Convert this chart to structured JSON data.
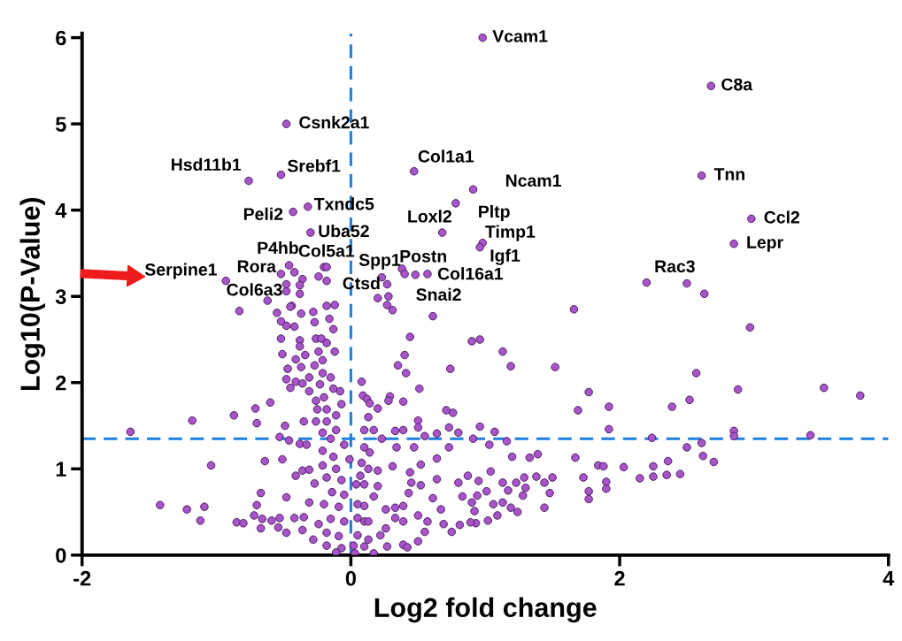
{
  "chart_data": {
    "type": "scatter",
    "xlabel": "Log2 fold change",
    "ylabel": "Log10(P-Value)",
    "xlim": [
      -2,
      4
    ],
    "ylim": [
      0,
      6.05
    ],
    "xticks": [
      -2,
      0,
      2,
      4
    ],
    "yticks": [
      0,
      1,
      2,
      3,
      4,
      5,
      6
    ],
    "grid": false,
    "marker": "circle",
    "series": [
      {
        "color": "#a855c8",
        "x": [
          0.98,
          2.68,
          -0.48,
          2.61,
          -0.76,
          -0.52,
          0.47,
          0.91,
          0.78,
          -0.32,
          -0.43,
          2.98,
          -0.3,
          0.68,
          0.98,
          0.96,
          2.85,
          -0.46,
          -0.2,
          -0.52,
          -0.93,
          -0.48,
          0.38,
          0.48,
          0.57,
          0.23,
          0.4,
          2.2,
          -0.18,
          -0.42,
          -0.36,
          -0.48,
          -0.38,
          -0.38,
          -0.62,
          -0.24,
          -0.18,
          -0.44,
          0.27,
          2.5,
          2.63,
          1.66,
          2.97,
          0.61,
          0.44,
          0.9,
          0.96,
          1.13,
          1.19,
          1.52,
          0.4,
          0.35,
          0.74,
          0.41,
          2.57,
          1.77,
          2.88,
          3.52,
          3.79,
          1.69,
          1.92,
          2.39,
          2.52,
          1.92,
          2.85,
          2.85,
          3.42,
          2.24,
          2.5,
          2.61,
          2.62,
          2.7,
          1.67,
          1.84,
          1.88,
          2.03,
          2.25,
          2.36,
          2.15,
          2.25,
          2.35,
          2.45,
          1.73,
          1.9,
          1.9,
          1.77,
          1.77,
          1.5,
          1.48,
          1.44,
          1.44,
          1.38,
          1.39,
          1.33,
          1.2,
          1.29,
          1.3,
          1.28,
          1.23,
          1.17,
          1.13,
          1.13,
          1.24,
          1.19,
          1.04,
          1.06,
          1.02,
          1.09,
          1.01,
          0.94,
          0.95,
          0.87,
          0.9,
          0.92,
          0.93,
          0.89,
          0.83,
          0.8,
          0.81,
          0.75,
          0.69,
          0.67,
          0.61,
          0.64,
          0.64,
          0.73,
          0.73,
          0.71,
          0.76,
          0.8,
          0.96,
          0.91,
          1.03,
          1.07,
          1.16,
          0.64,
          0.55,
          0.5,
          0.5,
          0.51,
          0.39,
          0.33,
          0.39,
          0.29,
          0.28,
          0.34,
          0.47,
          0.52,
          0.44,
          0.45,
          0.52,
          0.43,
          0.31,
          0.2,
          0.2,
          0.17,
          0.33,
          0.39,
          0.26,
          0.33,
          0.39,
          0.5,
          0.57,
          0.55,
          0.5,
          0.39,
          0.42,
          0.26,
          0.22,
          0.27,
          0.17,
          0.13,
          0.1,
          0.09,
          0.12,
          0.14,
          0.2,
          0.13,
          0.1,
          0.17,
          0.23,
          0.08,
          0.1,
          0.14,
          0.08,
          0.13,
          0.07,
          0.04,
          0.1,
          0.05,
          0.1,
          0.05,
          0.13,
          0.05,
          0.1,
          0.03,
          0.2,
          0.28,
          0.27,
          0.31,
          -1.64,
          -1.18,
          -0.87,
          -0.71,
          -0.6,
          -0.7,
          -1.04,
          -0.64,
          -1.42,
          -1.22,
          -1.09,
          -1.12,
          -0.85,
          -0.8,
          -0.72,
          -0.67,
          -0.7,
          -0.67,
          -0.66,
          -0.59,
          -0.53,
          -0.54,
          -0.48,
          -0.48,
          -0.51,
          -0.49,
          -0.53,
          -0.46,
          -0.41,
          -0.42,
          -0.36,
          -0.35,
          -0.31,
          -0.27,
          -0.36,
          -0.31,
          -0.38,
          -0.33,
          -0.35,
          -0.83,
          -0.55,
          -0.45,
          -0.37,
          -0.28,
          -0.18,
          -0.12,
          -0.52,
          -0.48,
          -0.42,
          -0.27,
          -0.16,
          -0.52,
          -0.38,
          -0.38,
          -0.26,
          -0.22,
          -0.18,
          -0.13,
          -0.51,
          -0.41,
          -0.34,
          -0.24,
          -0.12,
          -0.47,
          -0.37,
          -0.27,
          -0.21,
          -0.48,
          -0.41,
          -0.31,
          -0.21,
          -0.15,
          -0.45,
          -0.36,
          -0.31,
          -0.23,
          -0.13,
          -0.08,
          -0.26,
          -0.2,
          -0.07,
          -0.25,
          -0.18,
          -0.11,
          -0.26,
          -0.18,
          -0.11,
          -0.21,
          -0.15,
          -0.05,
          -0.21,
          -0.13,
          -0.21,
          -0.11,
          -0.01,
          -0.18,
          -0.07,
          -0.14,
          -0.05,
          -0.2,
          -0.09,
          -0.15,
          -0.05,
          -0.24,
          -0.18,
          -0.09,
          -0.28,
          -0.18,
          -0.07,
          -0.11,
          0.02
        ],
        "values": [
          6.0,
          5.44,
          5.0,
          4.4,
          4.34,
          4.41,
          4.45,
          4.24,
          4.08,
          4.04,
          3.98,
          3.9,
          3.74,
          3.74,
          3.62,
          3.57,
          3.61,
          3.36,
          3.34,
          3.26,
          3.18,
          3.06,
          3.32,
          3.25,
          3.26,
          3.22,
          3.26,
          3.16,
          3.34,
          3.28,
          3.2,
          3.14,
          3.13,
          3.03,
          2.95,
          3.23,
          3.18,
          2.89,
          3.14,
          3.15,
          3.03,
          2.85,
          2.64,
          2.77,
          2.53,
          2.48,
          2.5,
          2.36,
          2.19,
          2.18,
          2.32,
          2.2,
          2.16,
          2.11,
          2.11,
          1.89,
          1.92,
          1.94,
          1.85,
          1.68,
          1.72,
          1.72,
          1.8,
          1.46,
          1.44,
          1.38,
          1.39,
          1.36,
          1.25,
          1.3,
          1.15,
          1.08,
          1.13,
          1.04,
          1.03,
          1.02,
          1.03,
          1.09,
          0.89,
          0.91,
          0.93,
          0.94,
          0.9,
          0.85,
          0.77,
          0.74,
          0.65,
          0.9,
          0.72,
          0.84,
          0.55,
          0.91,
          1.17,
          1.13,
          1.14,
          0.9,
          0.78,
          0.69,
          0.84,
          0.75,
          0.84,
          0.61,
          0.5,
          0.55,
          0.97,
          0.59,
          0.4,
          0.46,
          0.74,
          0.69,
          0.86,
          0.92,
          0.61,
          0.51,
          0.37,
          0.38,
          0.68,
          0.84,
          0.35,
          0.27,
          0.36,
          0.53,
          0.66,
          0.88,
          1.12,
          1.25,
          1.48,
          1.68,
          1.65,
          1.42,
          1.49,
          1.35,
          1.28,
          1.43,
          1.32,
          1.41,
          1.38,
          1.56,
          1.48,
          1.93,
          1.78,
          1.44,
          1.45,
          1.84,
          1.79,
          1.25,
          1.25,
          1.05,
          0.96,
          0.84,
          0.81,
          0.72,
          1.03,
          0.98,
          0.8,
          0.68,
          0.55,
          0.57,
          0.53,
          0.43,
          0.39,
          0.46,
          0.39,
          0.27,
          0.16,
          0.12,
          0.09,
          0.31,
          0.23,
          0.1,
          0.02,
          0.18,
          0.39,
          1.85,
          1.81,
          1.76,
          1.7,
          1.6,
          1.45,
          1.45,
          1.35,
          2.01,
          1.25,
          1.19,
          1.07,
          1.0,
          0.92,
          0.82,
          0.82,
          0.59,
          0.57,
          0.43,
          0.39,
          0.23,
          0.1,
          0.02,
          2.98,
          3.0,
          2.9,
          2.84,
          1.43,
          1.56,
          1.62,
          1.7,
          1.77,
          1.53,
          1.04,
          1.09,
          0.58,
          0.53,
          0.56,
          0.4,
          0.38,
          0.37,
          0.46,
          0.31,
          0.58,
          0.72,
          0.42,
          0.4,
          0.43,
          0.32,
          0.26,
          0.67,
          1.11,
          1.5,
          1.37,
          1.33,
          0.92,
          0.43,
          0.29,
          0.44,
          0.61,
          0.83,
          0.98,
          0.99,
          1.29,
          1.28,
          1.55,
          2.83,
          2.81,
          2.88,
          2.8,
          2.82,
          2.89,
          2.9,
          2.71,
          2.66,
          2.65,
          2.7,
          2.74,
          2.51,
          2.49,
          2.42,
          2.51,
          2.51,
          2.46,
          2.62,
          2.33,
          2.27,
          2.32,
          2.36,
          2.36,
          2.16,
          2.18,
          2.2,
          2.26,
          2.04,
          2.01,
          2.06,
          2.11,
          2.06,
          1.94,
          1.99,
          1.9,
          1.98,
          1.93,
          1.9,
          1.79,
          1.83,
          1.75,
          1.69,
          1.69,
          1.62,
          1.55,
          1.55,
          1.45,
          1.42,
          1.35,
          1.28,
          1.21,
          1.14,
          1.04,
          1.0,
          1.11,
          0.9,
          0.87,
          0.73,
          0.7,
          0.59,
          0.56,
          0.42,
          0.39,
          0.36,
          0.26,
          0.22,
          0.18,
          0.11,
          0.08,
          0.03,
          0.11
        ]
      }
    ],
    "ref_lines": [
      {
        "axis": "x",
        "value": 0,
        "color": "#1f7fe0",
        "line_style": "dashed"
      },
      {
        "axis": "y",
        "value": 1.35,
        "color": "#1f7fe0",
        "line_style": "dashed"
      }
    ],
    "annotations": [
      {
        "text": "Vcam1",
        "x": 0.98,
        "y": 6.0
      },
      {
        "text": "C8a",
        "x": 2.68,
        "y": 5.44
      },
      {
        "text": "Csnk2a1",
        "x": -0.48,
        "y": 5.0
      },
      {
        "text": "Tnn",
        "x": 2.61,
        "y": 4.4
      },
      {
        "text": "Hsd11b1",
        "x": -0.76,
        "y": 4.34
      },
      {
        "text": "Srebf1",
        "x": -0.52,
        "y": 4.41
      },
      {
        "text": "Col1a1",
        "x": 0.47,
        "y": 4.45
      },
      {
        "text": "Ncam1",
        "x": 0.91,
        "y": 4.24
      },
      {
        "text": "Pltp",
        "x": 0.78,
        "y": 4.08
      },
      {
        "text": "Txndc5",
        "x": -0.32,
        "y": 4.04
      },
      {
        "text": "Peli2",
        "x": -0.43,
        "y": 3.98
      },
      {
        "text": "Ccl2",
        "x": 2.98,
        "y": 3.9
      },
      {
        "text": "Uba52",
        "x": -0.3,
        "y": 3.74
      },
      {
        "text": "Loxl2",
        "x": 0.68,
        "y": 3.74
      },
      {
        "text": "Timp1",
        "x": 0.98,
        "y": 3.62
      },
      {
        "text": "Igf1",
        "x": 0.96,
        "y": 3.57
      },
      {
        "text": "Lepr",
        "x": 2.85,
        "y": 3.61
      },
      {
        "text": "P4hb",
        "x": -0.46,
        "y": 3.36
      },
      {
        "text": "Col5a1",
        "x": -0.2,
        "y": 3.34
      },
      {
        "text": "Rora",
        "x": -0.52,
        "y": 3.26
      },
      {
        "text": "Serpine1",
        "x": -0.93,
        "y": 3.18
      },
      {
        "text": "Col6a3",
        "x": -0.48,
        "y": 3.06
      },
      {
        "text": "Spp1",
        "x": 0.38,
        "y": 3.32
      },
      {
        "text": "Postn",
        "x": 0.48,
        "y": 3.25
      },
      {
        "text": "Col16a1",
        "x": 0.57,
        "y": 3.26
      },
      {
        "text": "Ctsd",
        "x": 0.23,
        "y": 3.22
      },
      {
        "text": "Snai2",
        "x": 0.4,
        "y": 3.26
      },
      {
        "text": "Rac3",
        "x": 2.2,
        "y": 3.16
      }
    ]
  }
}
